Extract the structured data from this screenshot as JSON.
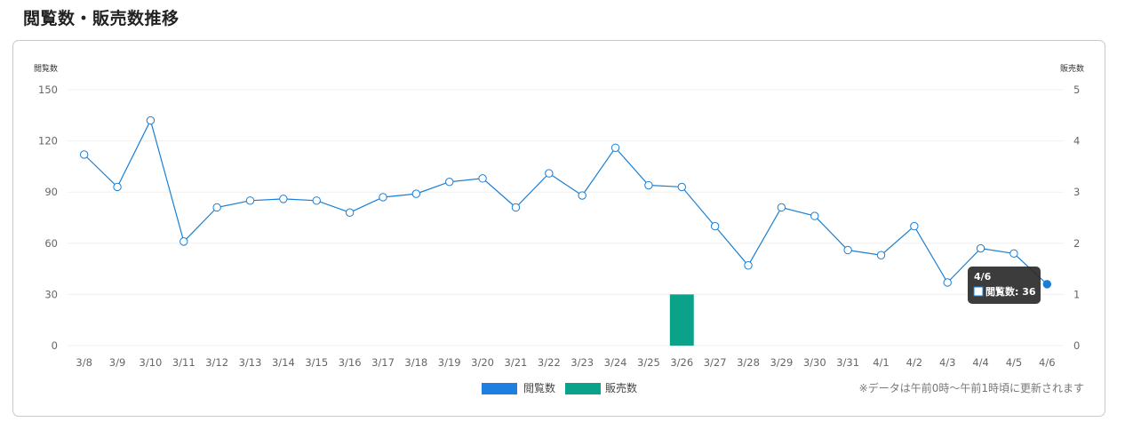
{
  "header": {
    "title": "閲覧数・販売数推移"
  },
  "chart_data": {
    "type": "bar",
    "categories": [
      "3/8",
      "3/9",
      "3/10",
      "3/11",
      "3/12",
      "3/13",
      "3/14",
      "3/15",
      "3/16",
      "3/17",
      "3/18",
      "3/19",
      "3/20",
      "3/21",
      "3/22",
      "3/23",
      "3/24",
      "3/25",
      "3/26",
      "3/27",
      "3/28",
      "3/29",
      "3/30",
      "3/31",
      "4/1",
      "4/2",
      "4/3",
      "4/4",
      "4/5",
      "4/6"
    ],
    "series": [
      {
        "name": "閲覧数",
        "type": "line",
        "axis": "left",
        "color": "#1a7fd4",
        "values": [
          112,
          93,
          132,
          61,
          81,
          85,
          86,
          85,
          78,
          87,
          89,
          96,
          98,
          81,
          101,
          88,
          116,
          94,
          93,
          70,
          47,
          81,
          76,
          56,
          53,
          70,
          37,
          57,
          54,
          36
        ]
      },
      {
        "name": "販売数",
        "type": "bar",
        "axis": "right",
        "color": "#0aa288",
        "values": [
          0,
          0,
          0,
          0,
          0,
          0,
          0,
          0,
          0,
          0,
          0,
          0,
          0,
          0,
          0,
          0,
          0,
          0,
          1,
          0,
          0,
          0,
          0,
          0,
          0,
          0,
          0,
          0,
          0,
          0
        ]
      }
    ],
    "ylabel_left": "閲覧数",
    "ylabel_right": "販売数",
    "ylim_left": [
      0,
      150
    ],
    "yticks_left": [
      0,
      30,
      60,
      90,
      120,
      150
    ],
    "ylim_right": [
      0,
      5
    ],
    "yticks_right": [
      0,
      1,
      2,
      3,
      4,
      5
    ],
    "grid": true,
    "legend": "bottom-center",
    "legend_colors": {
      "閲覧数": "#1f7fe0",
      "販売数": "#0aa288"
    },
    "tooltip": {
      "category": "4/6",
      "label": "閲覧数: 36"
    }
  },
  "note": "※データは午前0時〜午前1時頃に更新されます"
}
